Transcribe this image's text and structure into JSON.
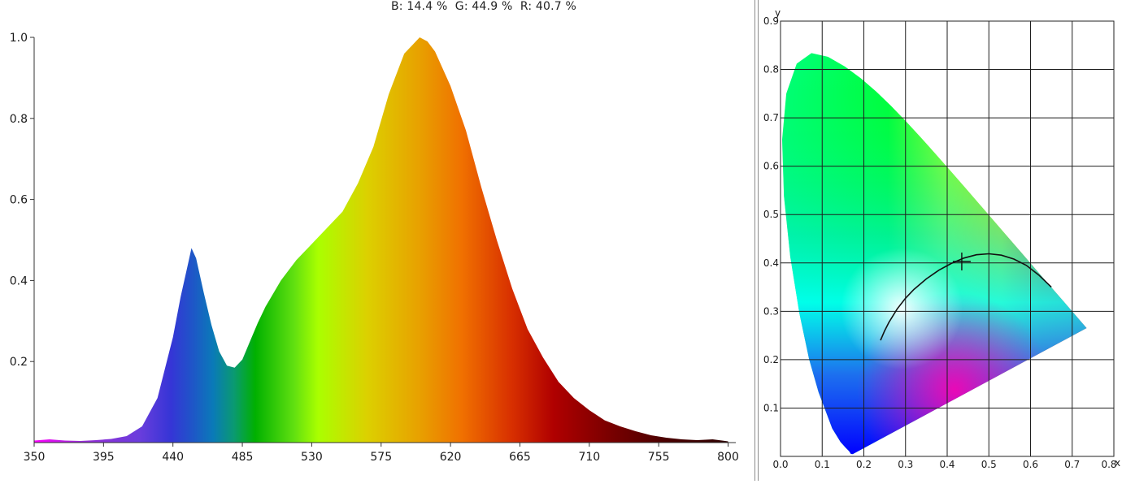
{
  "header": {
    "b_label": "B:",
    "b_value": "14.4 %",
    "g_label": "G:",
    "g_value": "44.9 %",
    "r_label": "R:",
    "r_value": "40.7 %"
  },
  "chart_data": [
    {
      "type": "area",
      "title": "",
      "xlabel": "",
      "ylabel": "",
      "xlim": [
        350,
        805
      ],
      "ylim": [
        0,
        1.0
      ],
      "x_ticks": [
        350,
        395,
        440,
        485,
        530,
        575,
        620,
        665,
        710,
        755,
        800
      ],
      "x_tick_labels": [
        "350",
        "395",
        "440",
        "485",
        "530",
        "575",
        "620",
        "665",
        "710",
        "755",
        "800"
      ],
      "y_ticks": [
        0.2,
        0.4,
        0.6,
        0.8,
        1.0
      ],
      "y_tick_labels": [
        "0.2",
        "0.4",
        "0.6",
        "0.8",
        "1.0"
      ],
      "grid": false,
      "fill": "wavelength-spectrum-gradient",
      "x": [
        350,
        360,
        370,
        380,
        390,
        400,
        410,
        420,
        430,
        440,
        445,
        450,
        452,
        455,
        460,
        465,
        470,
        475,
        480,
        485,
        490,
        495,
        500,
        510,
        520,
        530,
        540,
        550,
        560,
        570,
        580,
        590,
        600,
        605,
        610,
        620,
        630,
        640,
        650,
        660,
        670,
        680,
        690,
        700,
        710,
        720,
        730,
        740,
        750,
        760,
        770,
        780,
        790,
        800
      ],
      "values": [
        0.005,
        0.008,
        0.005,
        0.004,
        0.006,
        0.009,
        0.016,
        0.04,
        0.11,
        0.26,
        0.36,
        0.445,
        0.48,
        0.455,
        0.37,
        0.29,
        0.225,
        0.19,
        0.185,
        0.205,
        0.25,
        0.295,
        0.335,
        0.4,
        0.45,
        0.49,
        0.53,
        0.57,
        0.64,
        0.73,
        0.86,
        0.96,
        1.0,
        0.99,
        0.965,
        0.88,
        0.77,
        0.63,
        0.5,
        0.38,
        0.28,
        0.21,
        0.15,
        0.11,
        0.08,
        0.055,
        0.04,
        0.028,
        0.018,
        0.012,
        0.008,
        0.006,
        0.008,
        0.003
      ]
    },
    {
      "type": "scatter",
      "title": "",
      "xlabel": "x",
      "ylabel": "y",
      "xlim": [
        0,
        0.8
      ],
      "ylim": [
        0,
        0.9
      ],
      "x_ticks": [
        0.0,
        0.1,
        0.2,
        0.3,
        0.4,
        0.5,
        0.6,
        0.7,
        0.8
      ],
      "x_tick_labels": [
        "0.0",
        "0.1",
        "0.2",
        "0.3",
        "0.4",
        "0.5",
        "0.6",
        "0.7",
        "0.8"
      ],
      "y_ticks": [
        0.1,
        0.2,
        0.3,
        0.4,
        0.5,
        0.6,
        0.7,
        0.8,
        0.9
      ],
      "y_tick_labels": [
        "0.1",
        "0.2",
        "0.3",
        "0.4",
        "0.5",
        "0.6",
        "0.7",
        "0.8",
        "0.9"
      ],
      "grid": true,
      "locus": {
        "x": [
          0.1741,
          0.1738,
          0.1721,
          0.1689,
          0.1644,
          0.1566,
          0.144,
          0.1241,
          0.0913,
          0.0687,
          0.0454,
          0.0235,
          0.0082,
          0.0039,
          0.0139,
          0.0389,
          0.0743,
          0.1142,
          0.1547,
          0.1929,
          0.2296,
          0.2658,
          0.3016,
          0.3373,
          0.3731,
          0.4087,
          0.4441,
          0.4788,
          0.5125,
          0.5448,
          0.5752,
          0.6029,
          0.627,
          0.6482,
          0.6658,
          0.6801,
          0.6915,
          0.7006,
          0.714,
          0.7347
        ],
        "y": [
          0.005,
          0.0049,
          0.0048,
          0.0051,
          0.0109,
          0.0177,
          0.0297,
          0.0578,
          0.1327,
          0.2007,
          0.295,
          0.4127,
          0.5384,
          0.6548,
          0.7502,
          0.812,
          0.8338,
          0.8262,
          0.8059,
          0.7816,
          0.7543,
          0.7243,
          0.6923,
          0.6589,
          0.6245,
          0.5896,
          0.5547,
          0.5202,
          0.4866,
          0.4544,
          0.4242,
          0.3965,
          0.3725,
          0.3514,
          0.334,
          0.3197,
          0.3083,
          0.2993,
          0.2859,
          0.2653
        ]
      },
      "planckian_locus": {
        "x": [
          0.24,
          0.25,
          0.26,
          0.28,
          0.3,
          0.32,
          0.35,
          0.38,
          0.41,
          0.44,
          0.47,
          0.5,
          0.53,
          0.56,
          0.59,
          0.62,
          0.65
        ],
        "y": [
          0.24,
          0.26,
          0.277,
          0.305,
          0.327,
          0.345,
          0.367,
          0.385,
          0.399,
          0.41,
          0.417,
          0.419,
          0.416,
          0.408,
          0.395,
          0.375,
          0.35
        ]
      },
      "point": {
        "x": 0.435,
        "y": 0.403
      }
    }
  ]
}
